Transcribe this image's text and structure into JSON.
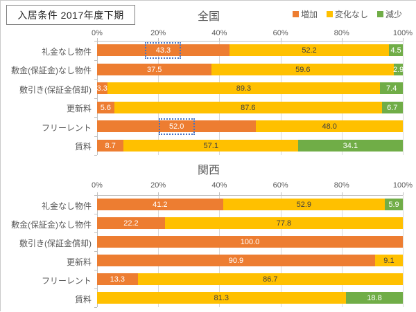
{
  "header": {
    "title": "入居条件  2017年度下期"
  },
  "legend": {
    "items": [
      {
        "label": "増加",
        "color": "#ED7D31"
      },
      {
        "label": "変化なし",
        "color": "#FFC000"
      },
      {
        "label": "減少",
        "color": "#70AD47"
      }
    ]
  },
  "axis": {
    "ticks": [
      "0%",
      "20%",
      "40%",
      "60%",
      "80%",
      "100%"
    ]
  },
  "chart_data": [
    {
      "type": "bar",
      "orientation": "horizontal",
      "stacked": true,
      "title": "全国",
      "xlim": [
        0,
        100
      ],
      "grid": true,
      "categories": [
        "礼金なし物件",
        "敷金(保証金)なし物件",
        "敷引き(保証金償却)",
        "更新料",
        "フリーレント",
        "賃料"
      ],
      "series": [
        {
          "name": "増加",
          "color": "#ED7D31",
          "label_color": "#FFFFFF",
          "values": [
            43.3,
            37.5,
            3.3,
            5.6,
            52.0,
            8.7
          ]
        },
        {
          "name": "変化なし",
          "color": "#FFC000",
          "label_color": "#404040",
          "values": [
            52.2,
            59.6,
            89.3,
            87.6,
            48.0,
            57.1
          ]
        },
        {
          "name": "減少",
          "color": "#70AD47",
          "label_color": "#FFFFFF",
          "values": [
            4.5,
            2.9,
            7.4,
            6.7,
            0,
            34.1
          ]
        }
      ],
      "selected_labels": [
        {
          "row": 0,
          "series": 0
        },
        {
          "row": 4,
          "series": 0
        }
      ]
    },
    {
      "type": "bar",
      "orientation": "horizontal",
      "stacked": true,
      "title": "関西",
      "xlim": [
        0,
        100
      ],
      "grid": true,
      "categories": [
        "礼金なし物件",
        "敷金(保証金)なし物件",
        "敷引き(保証金償却)",
        "更新料",
        "フリーレント",
        "賃料"
      ],
      "series": [
        {
          "name": "増加",
          "color": "#ED7D31",
          "label_color": "#FFFFFF",
          "values": [
            41.2,
            22.2,
            100.0,
            90.9,
            13.3,
            0
          ]
        },
        {
          "name": "変化なし",
          "color": "#FFC000",
          "label_color": "#404040",
          "values": [
            52.9,
            77.8,
            0,
            9.1,
            86.7,
            81.3
          ]
        },
        {
          "name": "減少",
          "color": "#70AD47",
          "label_color": "#FFFFFF",
          "values": [
            5.9,
            0,
            0,
            0,
            0,
            18.8
          ]
        }
      ],
      "selected_labels": []
    }
  ]
}
